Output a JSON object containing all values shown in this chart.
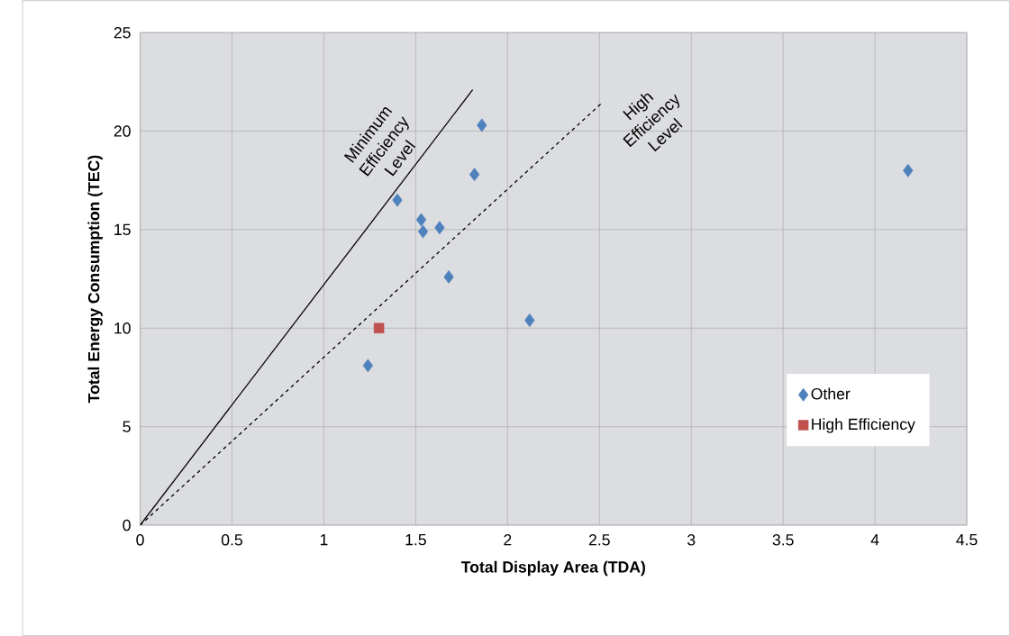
{
  "chart_data": {
    "type": "scatter",
    "xlabel": "Total Display Area (TDA)",
    "ylabel": "Total Energy Consumption (TEC)",
    "xlim": [
      0,
      4.5
    ],
    "ylim": [
      0,
      25
    ],
    "xticks": [
      0,
      0.5,
      1,
      1.5,
      2,
      2.5,
      3,
      3.5,
      4,
      4.5
    ],
    "yticks": [
      0,
      5,
      10,
      15,
      20,
      25
    ],
    "grid": true,
    "legend": "bottom right",
    "series": [
      {
        "name": "Other",
        "marker": "diamond",
        "color": "#4f81bd",
        "x": [
          1.24,
          1.4,
          1.53,
          1.54,
          1.63,
          1.68,
          1.82,
          1.86,
          2.12,
          4.18
        ],
        "values": [
          8.1,
          16.5,
          15.5,
          14.9,
          15.1,
          12.6,
          17.8,
          20.3,
          10.4,
          18.0
        ]
      },
      {
        "name": "High Efficiency",
        "marker": "square",
        "color": "#c0504d",
        "x": [
          1.3
        ],
        "values": [
          10.0
        ]
      },
      {
        "name": "Minimum Efficiency Level",
        "type": "line",
        "marker": "none",
        "line_style": "solid",
        "color": "#000000",
        "x": [
          0,
          1.81
        ],
        "values": [
          0,
          22.1
        ]
      },
      {
        "name": "High Efficiency Level",
        "type": "line",
        "marker": "none",
        "line_style": "dashed",
        "color": "#000000",
        "x": [
          0,
          2.51
        ],
        "values": [
          0,
          21.4
        ]
      }
    ]
  }
}
